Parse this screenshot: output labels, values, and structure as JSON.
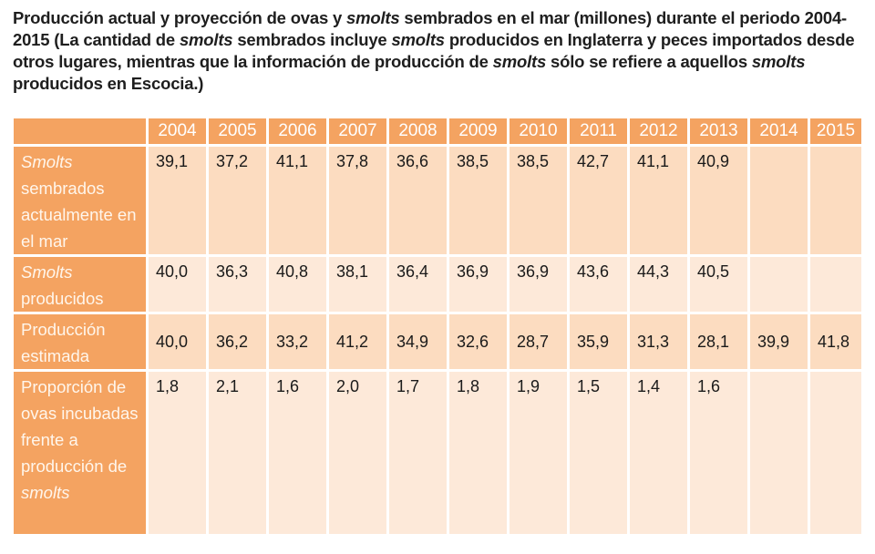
{
  "caption": {
    "p1": "Producción actual y  proyección de ovas y ",
    "i1": "smolts",
    "p2": " sembrados en el mar (millones) durante el periodo 2004-2015 (La cantidad de ",
    "i2": "smolts",
    "p3": " sembrados incluye ",
    "i3": "smolts",
    "p4": " producidos en Inglaterra y peces importados desde otros lugares, mientras que la información de producción de ",
    "i4": "smolts",
    "p5": " sólo se refiere a aquellos ",
    "i5": "smolts",
    "p6": " producidos en Escocia.)"
  },
  "table": {
    "years": [
      "2004",
      "2005",
      "2006",
      "2007",
      "2008",
      "2009",
      "2010",
      "2011",
      "2012",
      "2013",
      "2014",
      "2015"
    ],
    "rows": [
      {
        "label_italic": "Smolts",
        "label_rest": "sembrados actualmente en el mar",
        "values": [
          "39,1",
          "37,2",
          "41,1",
          "37,8",
          "36,6",
          "38,5",
          "38,5",
          "42,7",
          "41,1",
          "40,9",
          "",
          ""
        ]
      },
      {
        "label_italic": "Smolts",
        "label_rest": "producidos",
        "values": [
          "40,0",
          "36,3",
          "40,8",
          "38,1",
          "36,4",
          "36,9",
          "36,9",
          "43,6",
          "44,3",
          "40,5",
          "",
          ""
        ]
      },
      {
        "label_italic": "",
        "label_rest": "Producción estimada",
        "values": [
          "40,0",
          "36,2",
          "33,2",
          "41,2",
          "34,9",
          "32,6",
          "28,7",
          "35,9",
          "31,3",
          "28,1",
          "39,9",
          "41,8"
        ]
      },
      {
        "label_rest": "Proporción de ovas incubadas frente a producción de",
        "label_italic_end": "smolts",
        "values": [
          "1,8",
          "2,1",
          "1,6",
          "2,0",
          "1,7",
          "1,8",
          "1,9",
          "1,5",
          "1,4",
          "1,6",
          "",
          ""
        ]
      }
    ]
  },
  "colors": {
    "header": "#f4a361",
    "cell_dark": "#fcdcc0",
    "cell_light": "#fde9d9"
  }
}
